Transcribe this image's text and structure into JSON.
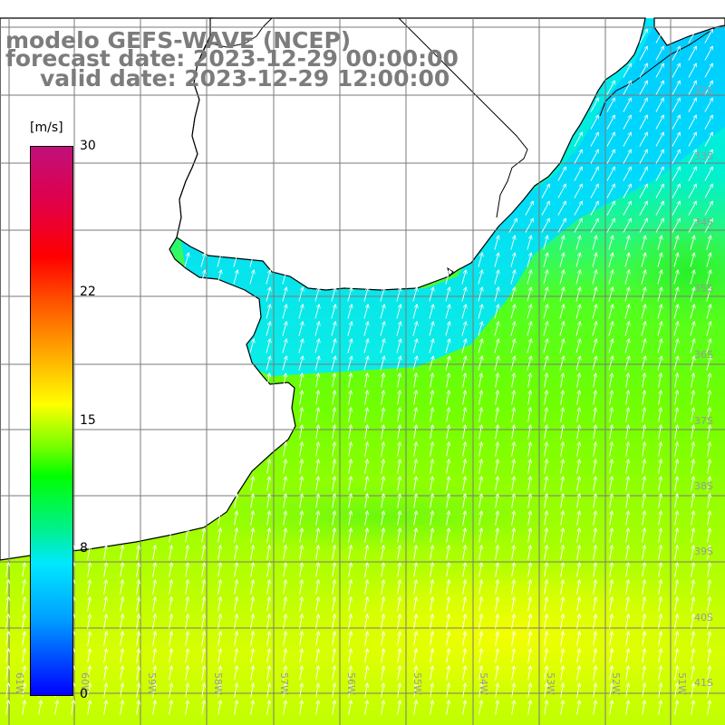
{
  "title": {
    "model": "modelo GEFS-WAVE (NCEP)",
    "forecast": "forecast date: 2023-12-29 00:00:00",
    "valid": "valid date: 2023-12-29 12:00:00"
  },
  "colorbar": {
    "unit": "[m/s]",
    "min": 0,
    "max": 30,
    "tick_labels": [
      {
        "value": 30,
        "text": "30"
      },
      {
        "value": 22,
        "text": "22"
      },
      {
        "value": 15,
        "text": "15"
      },
      {
        "value": 8,
        "text": "8"
      },
      {
        "value": 0,
        "text": "0"
      }
    ]
  },
  "map": {
    "extent": {
      "lon": [
        -61.5,
        -50.5
      ],
      "lat": [
        -41.5,
        -30.8
      ]
    },
    "lat_labels": [
      "32S",
      "33S",
      "34S",
      "35S",
      "36S",
      "37S",
      "38S",
      "39S",
      "40S",
      "41S"
    ],
    "lon_labels": [
      "61W",
      "60W",
      "59W",
      "58W",
      "57W",
      "56W",
      "55W",
      "54W",
      "53W",
      "52W",
      "51W"
    ],
    "wind_direction": "from south-southwest",
    "colors": {
      "land": "#ffffff",
      "coast": "#000000",
      "grid": "#9a9a9a",
      "arrow": "#ffffff"
    }
  }
}
